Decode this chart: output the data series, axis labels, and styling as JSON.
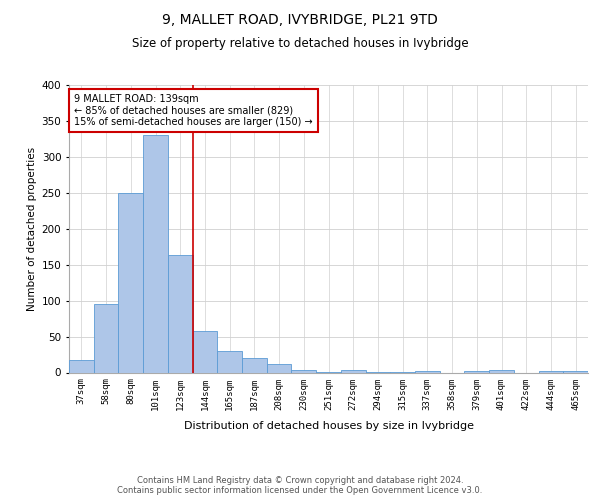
{
  "title": "9, MALLET ROAD, IVYBRIDGE, PL21 9TD",
  "subtitle": "Size of property relative to detached houses in Ivybridge",
  "xlabel": "Distribution of detached houses by size in Ivybridge",
  "ylabel": "Number of detached properties",
  "categories": [
    "37sqm",
    "58sqm",
    "80sqm",
    "101sqm",
    "123sqm",
    "144sqm",
    "165sqm",
    "187sqm",
    "208sqm",
    "230sqm",
    "251sqm",
    "272sqm",
    "294sqm",
    "315sqm",
    "337sqm",
    "358sqm",
    "379sqm",
    "401sqm",
    "422sqm",
    "444sqm",
    "465sqm"
  ],
  "values": [
    18,
    96,
    250,
    330,
    163,
    58,
    30,
    20,
    12,
    4,
    1,
    3,
    1,
    1,
    2,
    0,
    2,
    3,
    0,
    2,
    2
  ],
  "bar_color": "#AEC6E8",
  "bar_edge_color": "#5B9BD5",
  "vline_x": 4.5,
  "vline_color": "#CC0000",
  "annotation_text": "9 MALLET ROAD: 139sqm\n← 85% of detached houses are smaller (829)\n15% of semi-detached houses are larger (150) →",
  "annotation_box_color": "#CC0000",
  "ylim": [
    0,
    400
  ],
  "yticks": [
    0,
    50,
    100,
    150,
    200,
    250,
    300,
    350,
    400
  ],
  "footer": "Contains HM Land Registry data © Crown copyright and database right 2024.\nContains public sector information licensed under the Open Government Licence v3.0.",
  "background_color": "#FFFFFF",
  "grid_color": "#D0D0D0"
}
